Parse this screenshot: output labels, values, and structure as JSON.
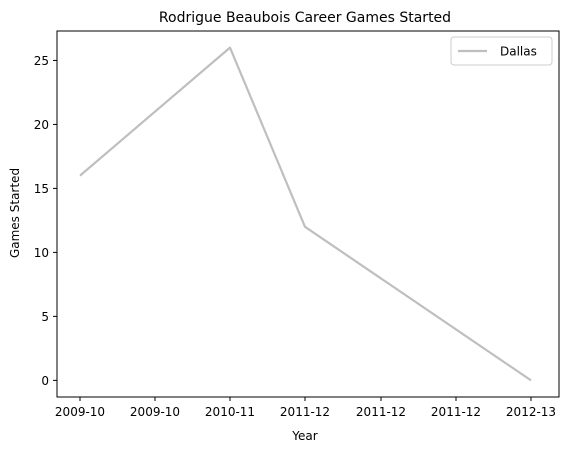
{
  "chart_data": {
    "type": "line",
    "title": "Rodrigue Beaubois Career Games Started",
    "xlabel": "Year",
    "ylabel": "Games Started",
    "x_tick_labels": [
      "2009-10",
      "2009-10",
      "2010-11",
      "2011-12",
      "2011-12",
      "2011-12",
      "2012-13"
    ],
    "y_ticks": [
      0,
      5,
      10,
      15,
      20,
      25
    ],
    "ylim": [
      -1.3,
      27.3
    ],
    "grid": false,
    "legend_position": "top-right",
    "series": [
      {
        "name": "Dallas",
        "color": "#bfbfbf",
        "x": [
          "2009-10",
          "2010-11",
          "2011-12",
          "2012-13"
        ],
        "y": [
          16,
          26,
          12,
          0
        ]
      }
    ]
  }
}
